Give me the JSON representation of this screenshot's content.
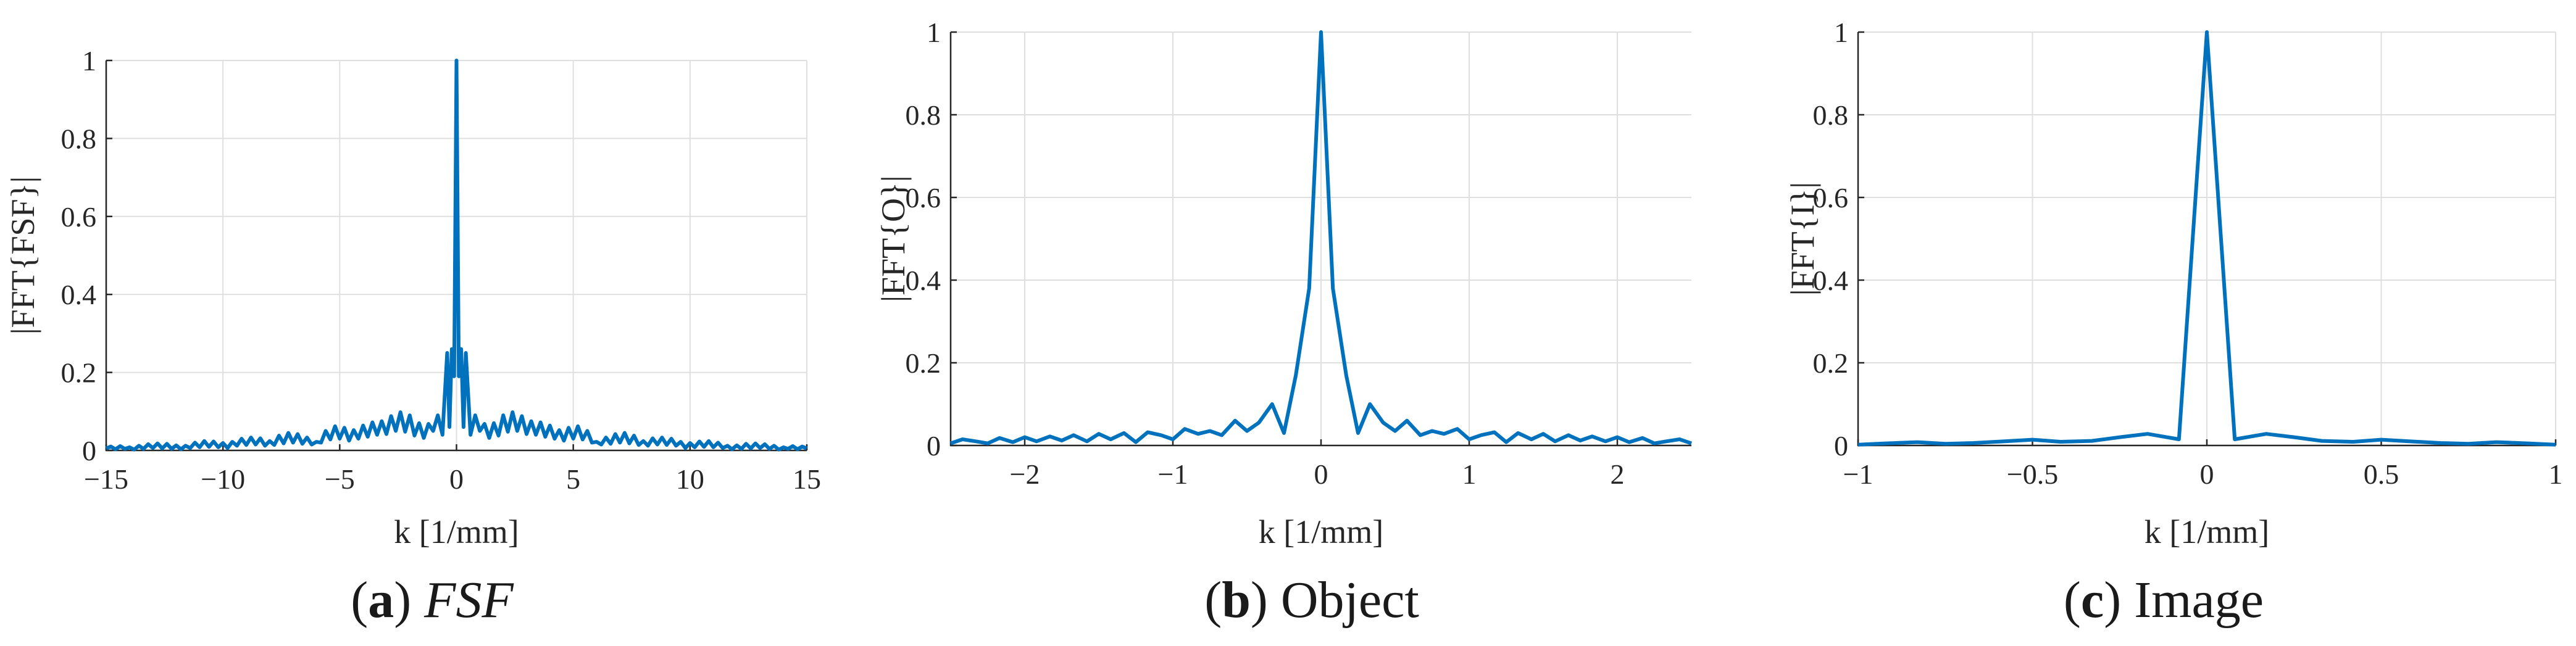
{
  "colors": {
    "series": "#0072BD",
    "axis": "#262626",
    "grid": "#dfdfdf"
  },
  "chart_data": [
    {
      "type": "line",
      "panel": "a",
      "caption_letter": "a",
      "caption_text": "FSF",
      "xlabel": "k [1/mm]",
      "ylabel": "|FFT{FSF}|",
      "xlim": [
        -15,
        15
      ],
      "ylim": [
        0,
        1
      ],
      "xticks": [
        -15,
        -10,
        -5,
        0,
        5,
        10,
        15
      ],
      "xtick_labels": [
        "−15",
        "−10",
        "−5",
        "0",
        "5",
        "10",
        "15"
      ],
      "yticks": [
        0,
        0.2,
        0.4,
        0.6,
        0.8,
        1
      ],
      "ytick_labels": [
        "0",
        "0.2",
        "0.4",
        "0.6",
        "0.8",
        "1"
      ],
      "grid": true,
      "series": [
        {
          "x": [
            -15,
            -14.8,
            -14.6,
            -14.4,
            -14.2,
            -14,
            -13.8,
            -13.6,
            -13.4,
            -13.2,
            -13,
            -12.8,
            -12.6,
            -12.4,
            -12.2,
            -12,
            -11.8,
            -11.6,
            -11.4,
            -11.2,
            -11,
            -10.8,
            -10.6,
            -10.4,
            -10.2,
            -10,
            -9.8,
            -9.6,
            -9.4,
            -9.2,
            -9,
            -8.8,
            -8.6,
            -8.4,
            -8.2,
            -8,
            -7.8,
            -7.6,
            -7.4,
            -7.2,
            -7,
            -6.8,
            -6.6,
            -6.4,
            -6.2,
            -6,
            -5.8,
            -5.6,
            -5.4,
            -5.2,
            -5,
            -4.8,
            -4.6,
            -4.4,
            -4.2,
            -4,
            -3.8,
            -3.6,
            -3.4,
            -3.2,
            -3,
            -2.8,
            -2.6,
            -2.4,
            -2.2,
            -2,
            -1.8,
            -1.6,
            -1.4,
            -1.2,
            -1,
            -0.8,
            -0.6,
            -0.4,
            -0.3,
            -0.2,
            -0.1,
            0,
            0.1,
            0.2,
            0.3,
            0.4,
            0.6,
            0.8,
            1,
            1.2,
            1.4,
            1.6,
            1.8,
            2,
            2.2,
            2.4,
            2.6,
            2.8,
            3,
            3.2,
            3.4,
            3.6,
            3.8,
            4,
            4.2,
            4.4,
            4.6,
            4.8,
            5,
            5.2,
            5.4,
            5.6,
            5.8,
            6,
            6.2,
            6.4,
            6.6,
            6.8,
            7,
            7.2,
            7.4,
            7.6,
            7.8,
            8,
            8.2,
            8.4,
            8.6,
            8.8,
            9,
            9.2,
            9.4,
            9.6,
            9.8,
            10,
            10.2,
            10.4,
            10.6,
            10.8,
            11,
            11.2,
            11.4,
            11.6,
            11.8,
            12,
            12.2,
            12.4,
            12.6,
            12.8,
            13,
            13.2,
            13.4,
            13.6,
            13.8,
            14,
            14.2,
            14.4,
            14.6,
            14.8,
            15
          ],
          "y": [
            0.005,
            0.01,
            0.003,
            0.011,
            0.004,
            0.008,
            0.002,
            0.012,
            0.004,
            0.016,
            0.006,
            0.018,
            0.005,
            0.017,
            0.004,
            0.013,
            0.003,
            0.012,
            0.006,
            0.02,
            0.008,
            0.024,
            0.009,
            0.023,
            0.008,
            0.019,
            0.006,
            0.022,
            0.012,
            0.03,
            0.014,
            0.033,
            0.015,
            0.031,
            0.012,
            0.024,
            0.014,
            0.038,
            0.018,
            0.045,
            0.02,
            0.042,
            0.017,
            0.033,
            0.015,
            0.022,
            0.02,
            0.05,
            0.028,
            0.062,
            0.03,
            0.058,
            0.025,
            0.052,
            0.03,
            0.064,
            0.035,
            0.072,
            0.04,
            0.075,
            0.042,
            0.088,
            0.05,
            0.098,
            0.048,
            0.09,
            0.038,
            0.07,
            0.032,
            0.068,
            0.05,
            0.09,
            0.04,
            0.25,
            0.06,
            0.26,
            0.19,
            1.0,
            0.19,
            0.26,
            0.06,
            0.25,
            0.04,
            0.09,
            0.05,
            0.068,
            0.032,
            0.07,
            0.038,
            0.09,
            0.048,
            0.098,
            0.05,
            0.088,
            0.042,
            0.075,
            0.04,
            0.072,
            0.035,
            0.064,
            0.03,
            0.052,
            0.025,
            0.058,
            0.03,
            0.062,
            0.028,
            0.05,
            0.02,
            0.022,
            0.015,
            0.033,
            0.017,
            0.042,
            0.02,
            0.045,
            0.018,
            0.038,
            0.014,
            0.024,
            0.012,
            0.031,
            0.015,
            0.033,
            0.014,
            0.03,
            0.012,
            0.022,
            0.006,
            0.019,
            0.008,
            0.023,
            0.009,
            0.024,
            0.008,
            0.02,
            0.006,
            0.012,
            0.003,
            0.013,
            0.004,
            0.017,
            0.005,
            0.018,
            0.006,
            0.016,
            0.004,
            0.012,
            0.002,
            0.008,
            0.004,
            0.011,
            0.003,
            0.01,
            0.005
          ]
        }
      ]
    },
    {
      "type": "line",
      "panel": "b",
      "caption_letter": "b",
      "caption_text": "Object",
      "xlabel": "k [1/mm]",
      "ylabel": "|FFT{O}|",
      "xlim": [
        -2.5,
        2.5
      ],
      "ylim": [
        0,
        1
      ],
      "xticks": [
        -2,
        -1,
        0,
        1,
        2
      ],
      "xtick_labels": [
        "−2",
        "−1",
        "0",
        "1",
        "2"
      ],
      "yticks": [
        0,
        0.2,
        0.4,
        0.6,
        0.8,
        1
      ],
      "ytick_labels": [
        "0",
        "0.2",
        "0.4",
        "0.6",
        "0.8",
        "1"
      ],
      "grid": true,
      "series": [
        {
          "x": [
            -2.5,
            -2.42,
            -2.33,
            -2.25,
            -2.17,
            -2.08,
            -2.0,
            -1.92,
            -1.83,
            -1.75,
            -1.67,
            -1.58,
            -1.5,
            -1.42,
            -1.33,
            -1.25,
            -1.17,
            -1.08,
            -1.0,
            -0.92,
            -0.83,
            -0.75,
            -0.67,
            -0.58,
            -0.5,
            -0.42,
            -0.33,
            -0.25,
            -0.17,
            -0.08,
            0,
            0.08,
            0.17,
            0.25,
            0.33,
            0.42,
            0.5,
            0.58,
            0.67,
            0.75,
            0.83,
            0.92,
            1.0,
            1.08,
            1.17,
            1.25,
            1.33,
            1.42,
            1.5,
            1.58,
            1.67,
            1.75,
            1.83,
            1.92,
            2.0,
            2.08,
            2.17,
            2.25,
            2.33,
            2.42,
            2.5
          ],
          "y": [
            0.005,
            0.015,
            0.01,
            0.005,
            0.018,
            0.008,
            0.02,
            0.01,
            0.022,
            0.012,
            0.025,
            0.01,
            0.028,
            0.015,
            0.03,
            0.008,
            0.032,
            0.025,
            0.015,
            0.04,
            0.028,
            0.035,
            0.025,
            0.06,
            0.035,
            0.055,
            0.1,
            0.03,
            0.17,
            0.38,
            1.0,
            0.38,
            0.17,
            0.03,
            0.1,
            0.055,
            0.035,
            0.06,
            0.025,
            0.035,
            0.028,
            0.04,
            0.015,
            0.025,
            0.032,
            0.008,
            0.03,
            0.015,
            0.028,
            0.01,
            0.025,
            0.012,
            0.022,
            0.01,
            0.02,
            0.008,
            0.018,
            0.005,
            0.01,
            0.015,
            0.005
          ]
        }
      ]
    },
    {
      "type": "line",
      "panel": "c",
      "caption_letter": "c",
      "caption_text": "Image",
      "xlabel": "k [1/mm]",
      "ylabel": "|FFT{I}|",
      "xlim": [
        -1,
        1
      ],
      "ylim": [
        0,
        1
      ],
      "xticks": [
        -1,
        -0.5,
        0,
        0.5,
        1
      ],
      "xtick_labels": [
        "−1",
        "−0.5",
        "0",
        "0.5",
        "1"
      ],
      "yticks": [
        0,
        0.2,
        0.4,
        0.6,
        0.8,
        1
      ],
      "ytick_labels": [
        "0",
        "0.2",
        "0.4",
        "0.6",
        "0.8",
        "1"
      ],
      "grid": true,
      "series": [
        {
          "x": [
            -1,
            -0.92,
            -0.83,
            -0.75,
            -0.67,
            -0.58,
            -0.5,
            -0.42,
            -0.33,
            -0.25,
            -0.17,
            -0.08,
            0,
            0.08,
            0.17,
            0.25,
            0.33,
            0.42,
            0.5,
            0.58,
            0.67,
            0.75,
            0.83,
            0.92,
            1
          ],
          "y": [
            0.002,
            0.005,
            0.008,
            0.004,
            0.006,
            0.01,
            0.014,
            0.009,
            0.011,
            0.02,
            0.028,
            0.015,
            1.0,
            0.015,
            0.028,
            0.02,
            0.011,
            0.009,
            0.014,
            0.01,
            0.006,
            0.004,
            0.008,
            0.005,
            0.002
          ]
        }
      ]
    }
  ]
}
